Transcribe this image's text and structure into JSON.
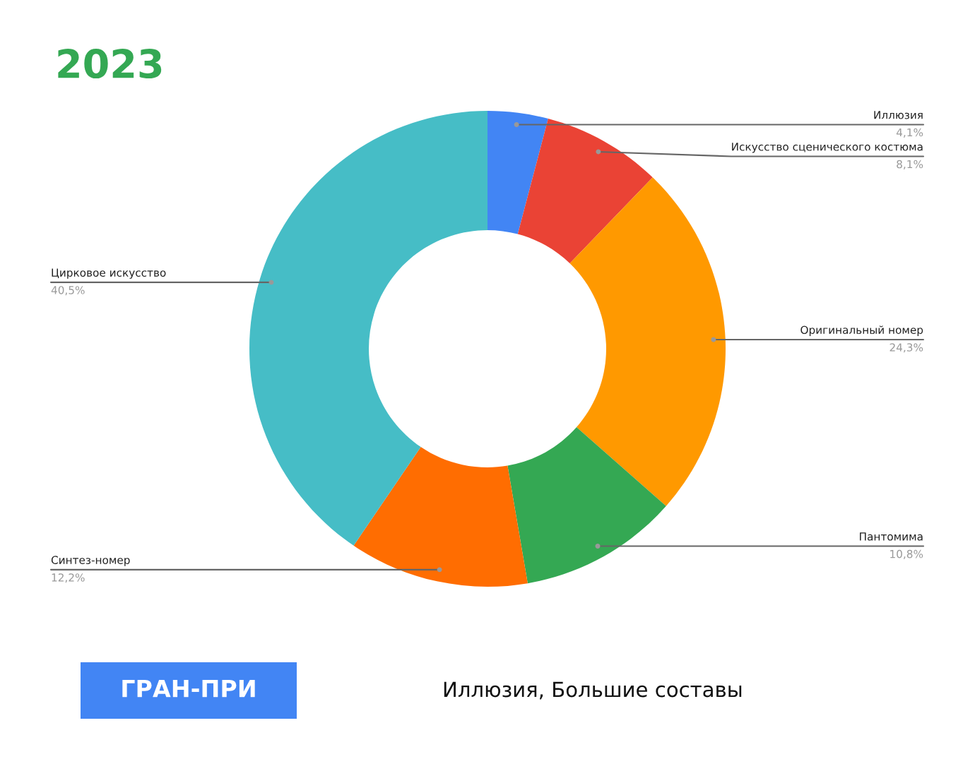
{
  "chart_data": {
    "type": "donut",
    "title": "2023",
    "subtitle": "Иллюзия, Большие составы",
    "categories": [
      "Иллюзия",
      "Искусство сценического костюма",
      "Оригинальный номер",
      "Пантомима",
      "Синтез-номер",
      "Цирковое искусство"
    ],
    "values": [
      4.1,
      8.1,
      24.3,
      10.8,
      12.2,
      40.5
    ],
    "colors": [
      "#4285f4",
      "#ea4335",
      "#ff9900",
      "#34a853",
      "#ff6d01",
      "#46bdc6"
    ],
    "value_labels": [
      "4,1%",
      "8,1%",
      "24,3%",
      "10,8%",
      "12,2%",
      "40,5%"
    ],
    "annotations": [
      "ГРАН-ПРИ"
    ]
  }
}
